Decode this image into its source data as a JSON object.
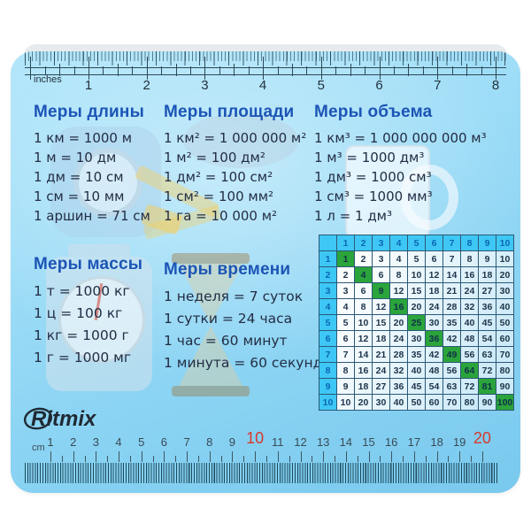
{
  "brand": {
    "name": "Ritmix"
  },
  "rulers": {
    "top": {
      "label": "inches",
      "numbers": [
        1,
        2,
        3,
        4,
        5,
        6,
        7,
        8
      ]
    },
    "bottom": {
      "label": "cm",
      "numbers": [
        1,
        2,
        3,
        4,
        5,
        6,
        7,
        8,
        9,
        10,
        11,
        12,
        13,
        14,
        15,
        16,
        17,
        18,
        19,
        20
      ],
      "red_numbers": [
        10,
        20
      ]
    }
  },
  "sections": {
    "length": {
      "title": "Меры длины",
      "lines": [
        "1 км = 1000 м",
        "1 м = 10 дм",
        "1 дм = 10 см",
        "1 см = 10 мм",
        "1 аршин = 71 см"
      ]
    },
    "area": {
      "title": "Меры площади",
      "lines": [
        "1 км² = 1 000 000 м²",
        "1 м² = 100 дм²",
        "1 дм² = 100 см²",
        "1 см² = 100 мм²",
        "1 га = 10 000 м²"
      ]
    },
    "volume": {
      "title": "Меры объема",
      "lines": [
        "1 км³ = 1 000 000 000 м³",
        "1 м³ = 1000 дм³",
        "1 дм³ = 1000 см³",
        "1 см³ = 1000 мм³",
        "1 л = 1 дм³"
      ]
    },
    "mass": {
      "title": "Меры массы",
      "lines": [
        "1 т = 1000 кг",
        "1 ц = 100 кг",
        "1 кг = 1000 г",
        "1 г = 1000 мг"
      ]
    },
    "time": {
      "title": "Меры времени",
      "lines": [
        "1 неделя = 7 суток",
        "1 сутки = 24 часа",
        "1 час = 60 минут",
        "1 минута = 60 секунд"
      ]
    }
  },
  "multiplication_table": {
    "header": [
      1,
      2,
      3,
      4,
      5,
      6,
      7,
      8,
      9,
      10
    ],
    "rows": [
      [
        1,
        2,
        3,
        4,
        5,
        6,
        7,
        8,
        9,
        10
      ],
      [
        2,
        4,
        6,
        8,
        10,
        12,
        14,
        16,
        18,
        20
      ],
      [
        3,
        6,
        9,
        12,
        15,
        18,
        21,
        24,
        27,
        30
      ],
      [
        4,
        8,
        12,
        16,
        20,
        24,
        28,
        32,
        36,
        40
      ],
      [
        5,
        10,
        15,
        20,
        25,
        30,
        35,
        40,
        45,
        50
      ],
      [
        6,
        12,
        18,
        24,
        30,
        36,
        42,
        48,
        54,
        60
      ],
      [
        7,
        14,
        21,
        28,
        35,
        42,
        49,
        56,
        63,
        70
      ],
      [
        8,
        16,
        24,
        32,
        40,
        48,
        56,
        64,
        72,
        80
      ],
      [
        9,
        18,
        27,
        36,
        45,
        54,
        63,
        72,
        81,
        90
      ],
      [
        10,
        20,
        30,
        40,
        50,
        60,
        70,
        80,
        90,
        100
      ]
    ]
  },
  "colors": {
    "heading_blue": "#1c55b5",
    "body_text": "#232d44",
    "pad_blue": "#8ad3f3",
    "table_header_bg": "#3ec7f4",
    "table_header_text": "#0a68b5",
    "table_square_green": "#2aa43b",
    "red_number": "#d8382b"
  }
}
